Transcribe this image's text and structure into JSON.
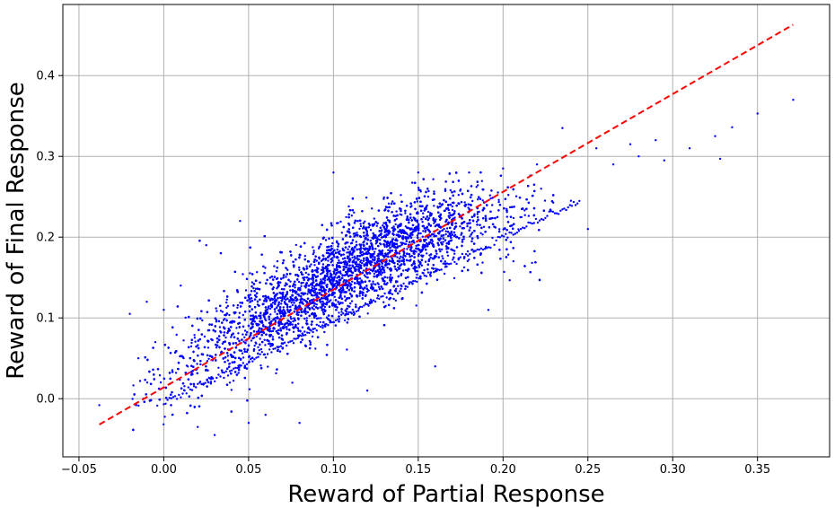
{
  "chart_data": {
    "type": "scatter",
    "title": "",
    "xlabel": "Reward of Partial Response",
    "ylabel": "Reward of Final Response",
    "xlim": [
      -0.0595,
      0.3925
    ],
    "ylim": [
      -0.072,
      0.488
    ],
    "xticks": [
      -0.05,
      0.0,
      0.05,
      0.1,
      0.15,
      0.2,
      0.25,
      0.3,
      0.35
    ],
    "xtick_labels": [
      "−0.05",
      "0.00",
      "0.05",
      "0.10",
      "0.15",
      "0.20",
      "0.25",
      "0.30",
      "0.35"
    ],
    "yticks": [
      0.0,
      0.1,
      0.2,
      0.3,
      0.4
    ],
    "ytick_labels": [
      "0.0",
      "0.1",
      "0.2",
      "0.3",
      "0.4"
    ],
    "grid": true,
    "series": [
      {
        "kind": "points",
        "color": "#0000ff",
        "sample_points": [
          [
            -0.038,
            -0.008
          ],
          [
            -0.02,
            0.105
          ],
          [
            -0.015,
            0.05
          ],
          [
            -0.012,
            0.0
          ],
          [
            -0.01,
            0.12
          ],
          [
            -0.005,
            0.07
          ],
          [
            0.0,
            0.11
          ],
          [
            0.005,
            -0.02
          ],
          [
            0.01,
            0.14
          ],
          [
            0.02,
            -0.035
          ],
          [
            0.025,
            0.19
          ],
          [
            0.03,
            -0.045
          ],
          [
            0.045,
            0.22
          ],
          [
            0.05,
            -0.03
          ],
          [
            0.06,
            -0.02
          ],
          [
            0.08,
            -0.03
          ],
          [
            0.1,
            0.28
          ],
          [
            0.12,
            0.01
          ],
          [
            0.15,
            0.28
          ],
          [
            0.16,
            0.04
          ],
          [
            0.18,
            0.28
          ],
          [
            0.2,
            0.285
          ],
          [
            0.22,
            0.29
          ],
          [
            0.235,
            0.335
          ],
          [
            0.24,
            0.245
          ],
          [
            0.25,
            0.21
          ],
          [
            0.255,
            0.31
          ],
          [
            0.265,
            0.29
          ],
          [
            0.275,
            0.315
          ],
          [
            0.28,
            0.3
          ],
          [
            0.29,
            0.32
          ],
          [
            0.295,
            0.295
          ],
          [
            0.31,
            0.31
          ],
          [
            0.325,
            0.325
          ],
          [
            0.328,
            0.297
          ],
          [
            0.335,
            0.336
          ],
          [
            0.35,
            0.353
          ],
          [
            0.371,
            0.37
          ]
        ],
        "dense_cloud": {
          "description": "main scatter body",
          "x_range": [
            0.0,
            0.21
          ],
          "center_trend": [
            [
              0.02,
              0.05
            ],
            [
              0.06,
              0.1
            ],
            [
              0.1,
              0.15
            ],
            [
              0.14,
              0.19
            ],
            [
              0.18,
              0.22
            ],
            [
              0.21,
              0.22
            ]
          ]
        },
        "tail_line": {
          "from": [
            0.0,
            -0.005
          ],
          "to": [
            0.245,
            0.245
          ]
        }
      },
      {
        "kind": "reference-line",
        "style": "dashed",
        "color": "#ff0000",
        "x": [
          -0.038,
          0.371
        ],
        "y": [
          -0.032,
          0.463
        ]
      }
    ]
  }
}
